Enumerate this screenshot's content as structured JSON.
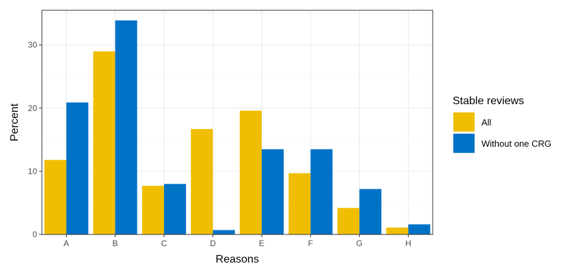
{
  "chart_data": {
    "type": "bar",
    "categories": [
      "A",
      "B",
      "C",
      "D",
      "E",
      "F",
      "G",
      "H"
    ],
    "series": [
      {
        "name": "All",
        "color": "#F0BE00",
        "values": [
          11.8,
          29.0,
          7.7,
          16.7,
          19.6,
          9.7,
          4.2,
          1.1
        ]
      },
      {
        "name": "Without one CRG",
        "color": "#0072C6",
        "values": [
          20.9,
          33.9,
          8.0,
          0.7,
          13.5,
          13.5,
          7.2,
          1.6
        ]
      }
    ],
    "xlabel": "Reasons",
    "ylabel": "Percent",
    "ylim": [
      0,
      35.5
    ],
    "yticks": [
      0,
      10,
      20,
      30
    ],
    "grid": true,
    "legend": {
      "title": "Stable reviews",
      "position": "right"
    }
  }
}
